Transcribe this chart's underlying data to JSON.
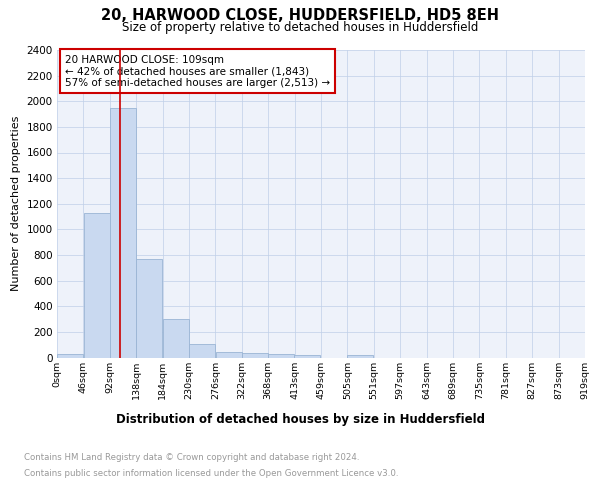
{
  "title": "20, HARWOOD CLOSE, HUDDERSFIELD, HD5 8EH",
  "subtitle": "Size of property relative to detached houses in Huddersfield",
  "xlabel": "Distribution of detached houses by size in Huddersfield",
  "ylabel": "Number of detached properties",
  "footnote1": "Contains HM Land Registry data © Crown copyright and database right 2024.",
  "footnote2": "Contains public sector information licensed under the Open Government Licence v3.0.",
  "annotation_title": "20 HARWOOD CLOSE: 109sqm",
  "annotation_line1": "← 42% of detached houses are smaller (1,843)",
  "annotation_line2": "57% of semi-detached houses are larger (2,513) →",
  "bar_color": "#c9d9f0",
  "bar_edge_color": "#9ab4d4",
  "grid_color": "#c0cfe8",
  "property_line_color": "#cc0000",
  "property_line_x": 109,
  "bin_width": 46,
  "bin_starts": [
    0,
    46,
    92,
    138,
    184,
    230,
    276,
    322,
    368,
    413,
    459,
    505,
    551,
    597,
    643,
    689,
    735,
    781,
    827,
    873
  ],
  "bar_heights": [
    30,
    1130,
    1950,
    770,
    300,
    105,
    45,
    32,
    28,
    22,
    0,
    18,
    0,
    0,
    0,
    0,
    0,
    0,
    0,
    0
  ],
  "xlim": [
    0,
    919
  ],
  "ylim": [
    0,
    2400
  ],
  "yticks": [
    0,
    200,
    400,
    600,
    800,
    1000,
    1200,
    1400,
    1600,
    1800,
    2000,
    2200,
    2400
  ],
  "xtick_labels": [
    "0sqm",
    "46sqm",
    "92sqm",
    "138sqm",
    "184sqm",
    "230sqm",
    "276sqm",
    "322sqm",
    "368sqm",
    "413sqm",
    "459sqm",
    "505sqm",
    "551sqm",
    "597sqm",
    "643sqm",
    "689sqm",
    "735sqm",
    "781sqm",
    "827sqm",
    "873sqm",
    "919sqm"
  ],
  "background_color": "#eef2fa",
  "title_fontsize": 10.5,
  "subtitle_fontsize": 8.5,
  "xlabel_fontsize": 8.5,
  "ylabel_fontsize": 8,
  "ytick_fontsize": 7.5,
  "xtick_fontsize": 6.8,
  "annotation_fontsize": 7.5,
  "footnote_fontsize": 6.2,
  "footnote_color": "#999999"
}
